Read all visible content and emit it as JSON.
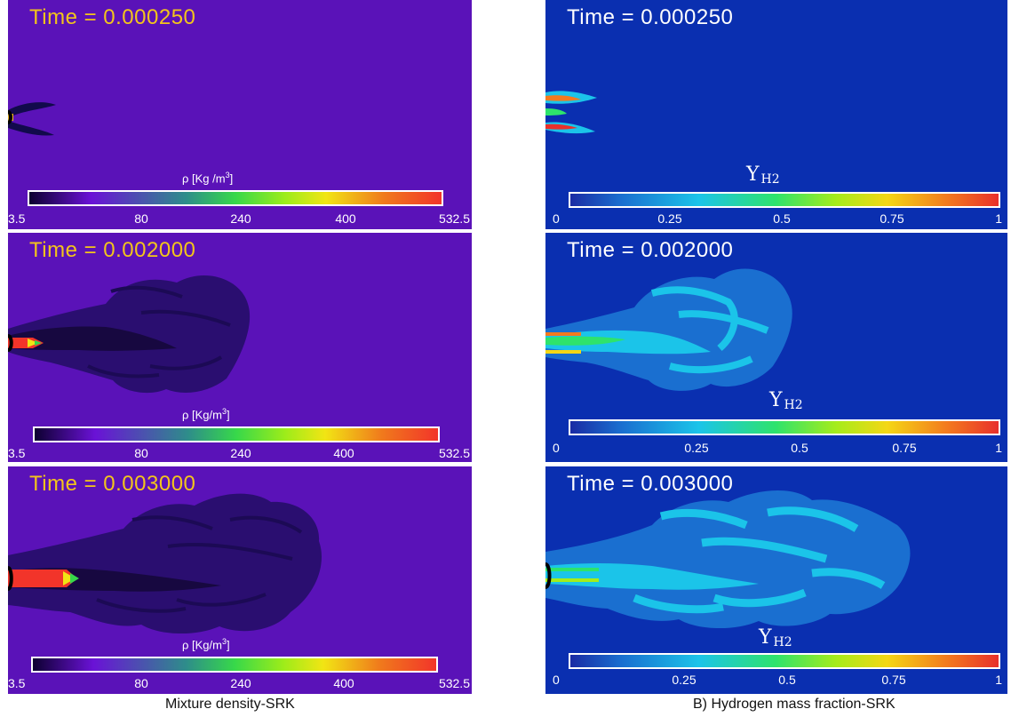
{
  "colors": {
    "density_bg": "#5a12b8",
    "h2_bg": "#0a2fb0",
    "time_text": "#f3c51b",
    "density_colormap": [
      "#0d0030",
      "#6a12d6",
      "#2e8d8a",
      "#37d84a",
      "#9cec1a",
      "#f1e514",
      "#f07a1c",
      "#f2342a"
    ],
    "h2_colormap": [
      "#1a2ba4",
      "#1a6fd0",
      "#1bc4e9",
      "#2ee36c",
      "#a5ec1b",
      "#f4d715",
      "#f37a1e",
      "#e8302b"
    ]
  },
  "density_panels": [
    {
      "time_text": "Time = 0.000250",
      "colorbar_title": "ρ [Kg /m",
      "colorbar_title_sup": "3",
      "colorbar_title_tail": "]",
      "ticks": [
        "3.5",
        "80",
        "240",
        "400",
        "532.5"
      ]
    },
    {
      "time_text": "Time = 0.002000",
      "colorbar_title": "ρ [Kg/m",
      "colorbar_title_sup": "3",
      "colorbar_title_tail": "]",
      "ticks": [
        "3.5",
        "80",
        "240",
        "400",
        "532.5"
      ]
    },
    {
      "time_text": "Time = 0.003000",
      "colorbar_title": "ρ [Kg/m",
      "colorbar_title_sup": "3",
      "colorbar_title_tail": "]",
      "ticks": [
        "3.5",
        "80",
        "240",
        "400",
        "532.5"
      ]
    }
  ],
  "h2_panels": [
    {
      "time_text": "Time = 0.000250",
      "colorbar_title": "Y",
      "colorbar_title_sub": "H2",
      "ticks": [
        "0",
        "0.25",
        "0.5",
        "0.75",
        "1"
      ]
    },
    {
      "time_text": "Time = 0.002000",
      "colorbar_title": "Y",
      "colorbar_title_sub": "H2",
      "ticks": [
        "0",
        "0.25",
        "0.5",
        "0.75",
        "1"
      ]
    },
    {
      "time_text": "Time = 0.003000",
      "colorbar_title": "Y",
      "colorbar_title_sub": "H2",
      "ticks": [
        "0",
        "0.25",
        "0.5",
        "0.75",
        "1"
      ]
    }
  ],
  "captions": {
    "left": "Mixture density-SRK",
    "right": "B) Hydrogen mass fraction-SRK"
  }
}
